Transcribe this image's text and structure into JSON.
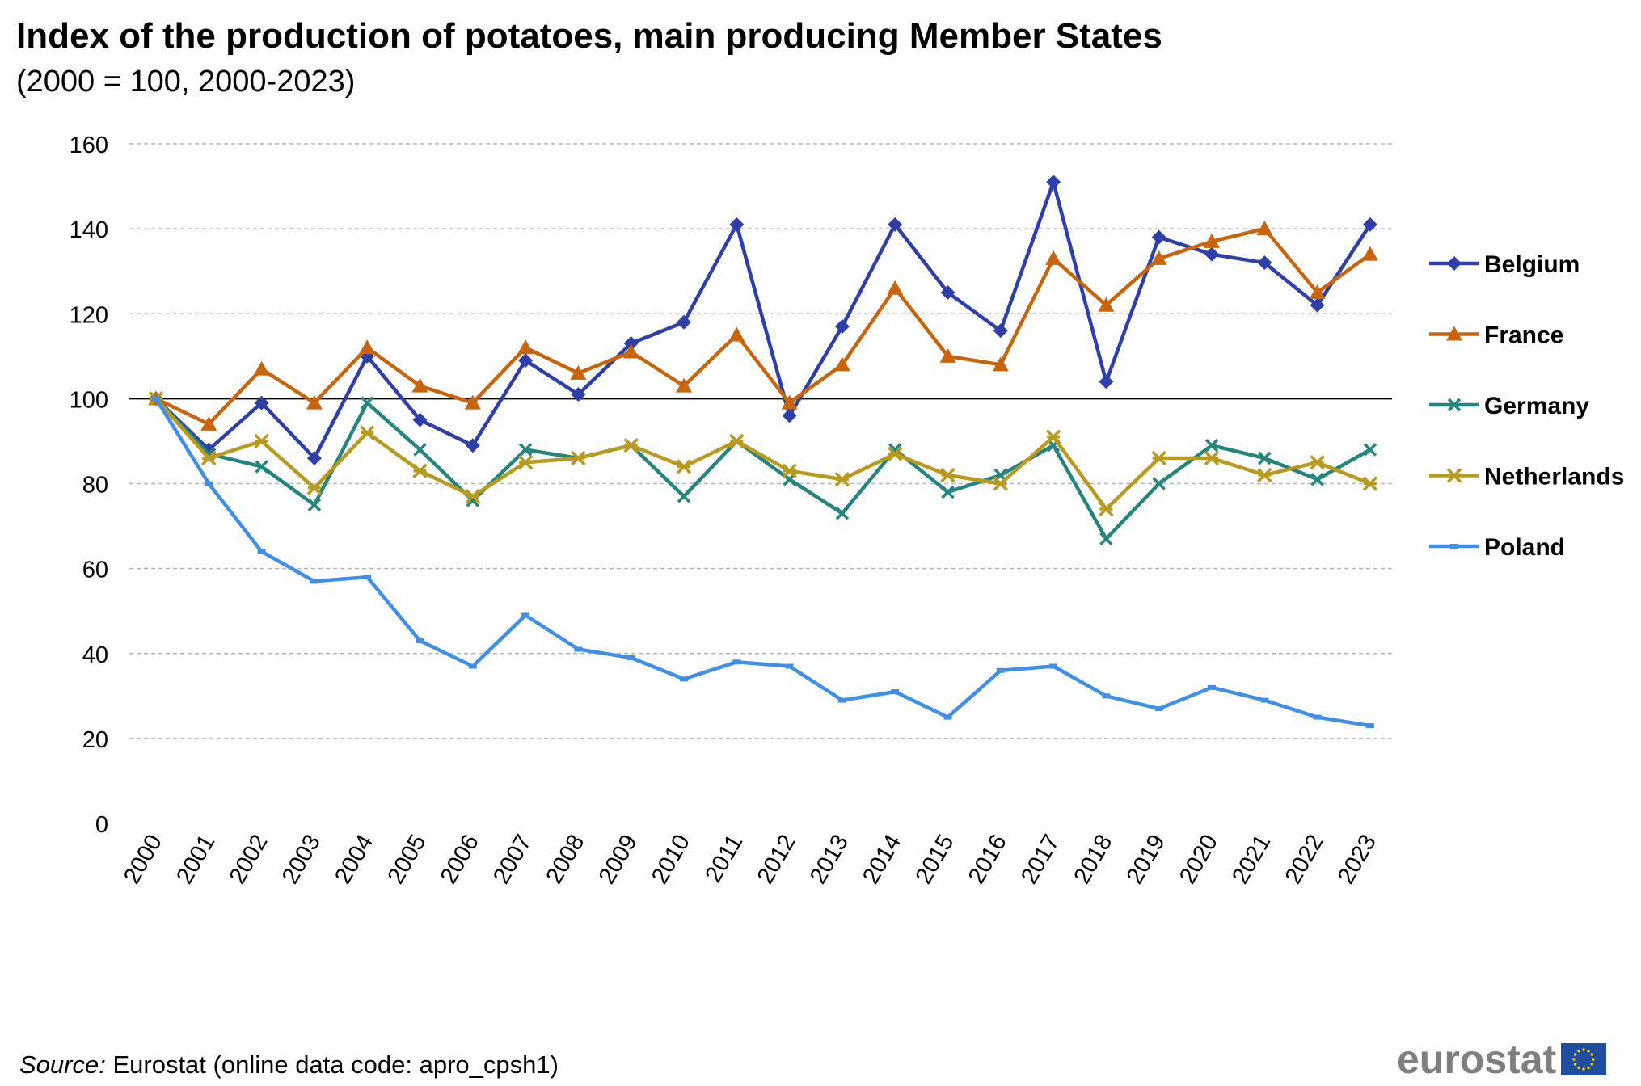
{
  "title": "Index of the production of potatoes, main producing Member States",
  "subtitle": "(2000 = 100, 2000-2023)",
  "source": {
    "label": "Source:",
    "text": " Eurostat (online data code: apro_cpsh1)"
  },
  "logo": {
    "text": "eurostat",
    "flag_color": "#1f4ea1",
    "star_color": "#ffcc00"
  },
  "chart_data": {
    "type": "line",
    "title": "Index of the production of potatoes, main producing Member States",
    "subtitle": "(2000 = 100, 2000-2023)",
    "xlabel": "",
    "ylabel": "",
    "ylim": [
      0,
      160
    ],
    "yticks": [
      0,
      20,
      40,
      60,
      80,
      100,
      120,
      140,
      160
    ],
    "grid": "horizontal dashed",
    "reference_line": 100,
    "legend_position": "right",
    "x": [
      "2000",
      "2001",
      "2002",
      "2003",
      "2004",
      "2005",
      "2006",
      "2007",
      "2008",
      "2009",
      "2010",
      "2011",
      "2012",
      "2013",
      "2014",
      "2015",
      "2016",
      "2017",
      "2018",
      "2019",
      "2020",
      "2021",
      "2022",
      "2023"
    ],
    "series": [
      {
        "name": "Belgium",
        "color": "#2e3fa8",
        "marker": "diamond",
        "values": [
          100,
          88,
          99,
          86,
          110,
          95,
          89,
          109,
          101,
          113,
          118,
          141,
          96,
          117,
          141,
          125,
          116,
          151,
          104,
          138,
          134,
          132,
          122,
          141
        ]
      },
      {
        "name": "France",
        "color": "#c8640c",
        "marker": "triangle",
        "values": [
          100,
          94,
          107,
          99,
          112,
          103,
          99,
          112,
          106,
          111,
          103,
          115,
          99,
          108,
          126,
          110,
          108,
          133,
          122,
          133,
          137,
          140,
          125,
          134
        ]
      },
      {
        "name": "Germany",
        "color": "#24857e",
        "marker": "x",
        "values": [
          100,
          87,
          84,
          75,
          99,
          88,
          76,
          88,
          86,
          89,
          77,
          90,
          81,
          73,
          88,
          78,
          82,
          89,
          67,
          80,
          89,
          86,
          81,
          88
        ]
      },
      {
        "name": "Netherlands",
        "color": "#b89a1e",
        "marker": "star",
        "values": [
          100,
          86,
          90,
          79,
          92,
          83,
          77,
          85,
          86,
          89,
          84,
          90,
          83,
          81,
          87,
          82,
          80,
          91,
          74,
          86,
          86,
          82,
          85,
          80
        ]
      },
      {
        "name": "Poland",
        "color": "#3f8fe6",
        "marker": "dash",
        "values": [
          100,
          80,
          64,
          57,
          58,
          43,
          37,
          49,
          41,
          39,
          34,
          38,
          37,
          29,
          31,
          25,
          36,
          37,
          30,
          27,
          32,
          29,
          25,
          23
        ]
      }
    ]
  }
}
